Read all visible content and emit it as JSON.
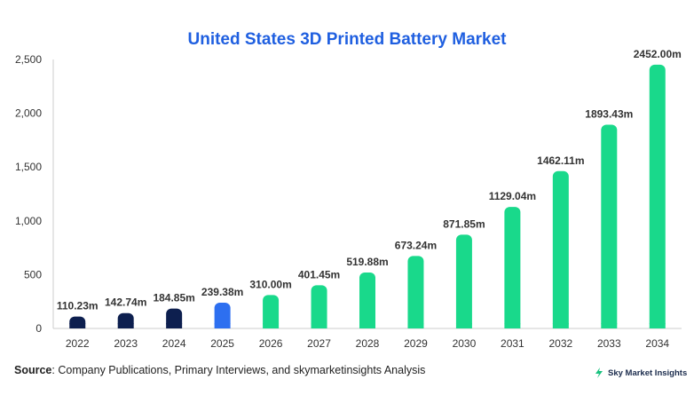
{
  "chart_data": {
    "type": "bar",
    "title": "United States 3D Printed Battery Market",
    "categories": [
      "2022",
      "2023",
      "2024",
      "2025",
      "2026",
      "2027",
      "2028",
      "2029",
      "2030",
      "2031",
      "2032",
      "2033",
      "2034"
    ],
    "values": [
      110.23,
      142.74,
      184.85,
      239.38,
      310.0,
      401.45,
      519.88,
      673.24,
      871.85,
      1129.04,
      1462.11,
      1893.43,
      2452.0
    ],
    "data_labels": [
      "110.23m",
      "142.74m",
      "184.85m",
      "239.38m",
      "310.00m",
      "401.45m",
      "519.88m",
      "673.24m",
      "871.85m",
      "1129.04m",
      "1462.11m",
      "1893.43m",
      "2452.00m"
    ],
    "yticks": [
      "0",
      "500",
      "1,000",
      "1,500",
      "2,000",
      "2,500"
    ],
    "ytick_values": [
      0,
      500,
      1000,
      1500,
      2000,
      2500
    ],
    "ylim": [
      0,
      2500
    ],
    "xlabel": "",
    "ylabel": "",
    "grid": false,
    "colors": {
      "historical": "#0d1f4f",
      "current": "#2d6ff0",
      "forecast": "#19d98b",
      "axis": "#cccccc",
      "title": "#1f5fe0"
    },
    "bar_color_groups": [
      "historical",
      "historical",
      "historical",
      "current",
      "forecast",
      "forecast",
      "forecast",
      "forecast",
      "forecast",
      "forecast",
      "forecast",
      "forecast",
      "forecast"
    ]
  },
  "footer": {
    "source_label": "Source",
    "source_text": ": Company Publications, Primary Interviews, and skymarketinsights Analysis",
    "brand": "Sky Market Insights",
    "brand_icon": "lightning-icon"
  }
}
